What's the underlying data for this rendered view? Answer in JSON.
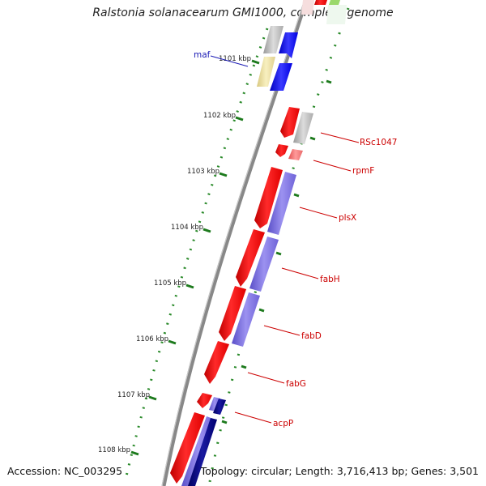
{
  "title": "Ralstonia solanacearum GMI1000, complete genome",
  "accession": "Accession: NC_003295",
  "summary": "Topology: circular; Length: 3,716,413 bp; Genes: 3,501",
  "kbp_labels": [
    "1101 kbp",
    "1102 kbp",
    "1103 kbp",
    "1104 kbp",
    "1105 kbp",
    "1106 kbp",
    "1107 kbp",
    "1108 kbp"
  ],
  "gene_labels": [
    {
      "name": "maf",
      "color": "#1a1ab4"
    },
    {
      "name": "RSc1047",
      "color": "#cc0000"
    },
    {
      "name": "rpmF",
      "color": "#cc0000"
    },
    {
      "name": "plsX",
      "color": "#cc0000"
    },
    {
      "name": "fabH",
      "color": "#cc0000"
    },
    {
      "name": "fabD",
      "color": "#cc0000"
    },
    {
      "name": "fabG",
      "color": "#cc0000"
    },
    {
      "name": "acpP",
      "color": "#cc0000"
    }
  ],
  "colors": {
    "forward_cds": "#ff0000",
    "reverse_cds": "#7a6ee0",
    "dark_blue_cds": "#0a0a8c",
    "blue_cds": "#1010ff",
    "gray_feature": "#b8b8b8",
    "yellow_feature": "#f0e6a0",
    "tick_green": "#2a8a2a",
    "backbone": "#888888"
  }
}
